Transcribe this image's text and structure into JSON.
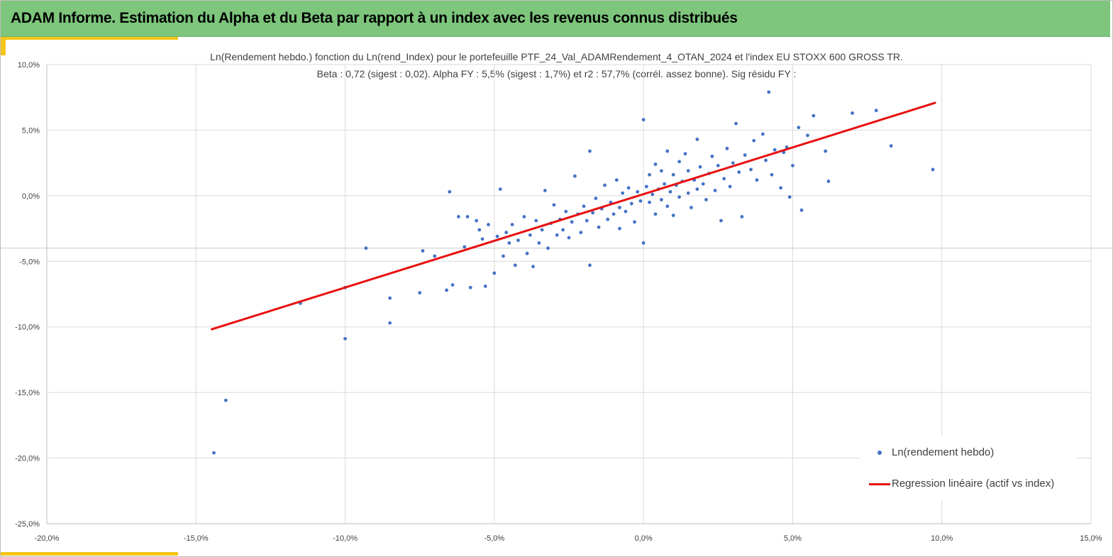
{
  "header": {
    "title": "ADAM Informe. Estimation du Alpha et du Beta par rapport à un index avec les revenus connus distribués",
    "background_color": "#7dc67c",
    "accent_color": "#f5c518"
  },
  "chart_data": {
    "type": "scatter",
    "title": "Ln(Rendement hebdo.) fonction du Ln(rend_Index) pour le portefeuille PTF_24_Val_ADAMRendement_4_OTAN_2024 et l'index EU STOXX 600 GROSS TR.",
    "subtitle": "Beta : 0,72 (sigest : 0,02). Alpha FY : 5,5% (sigest : 1,7%) et r2 : 57,7% (corrél. assez bonne). Sig résidu FY :",
    "xlabel": "",
    "ylabel": "",
    "xlim": [
      -20,
      15
    ],
    "ylim": [
      -25,
      10
    ],
    "x_ticks": [
      -20,
      -15,
      -10,
      -5,
      0,
      5,
      10,
      15
    ],
    "y_ticks": [
      10,
      5,
      0,
      -5,
      -10,
      -15,
      -20,
      -25
    ],
    "x_tick_labels": [
      "-20,0%",
      "-15,0%",
      "-10,0%",
      "-5,0%",
      "0,0%",
      "5,0%",
      "10,0%",
      "15,0%"
    ],
    "y_tick_labels": [
      "10,0%",
      "5,0%",
      "0,0%",
      "-5,0%",
      "-10,0%",
      "-15,0%",
      "-20,0%",
      "-25,0%"
    ],
    "grid": true,
    "reference_line_y": -4,
    "legend_position": "bottom-right",
    "series": [
      {
        "name": "Ln(rendement hebdo)",
        "kind": "points",
        "color": "#4472c4",
        "sampled": true,
        "points": [
          [
            -14.4,
            -19.6
          ],
          [
            -14.0,
            -15.6
          ],
          [
            -11.5,
            -8.2
          ],
          [
            -10.0,
            -10.9
          ],
          [
            -10.0,
            -7.0
          ],
          [
            -9.3,
            -4.0
          ],
          [
            -8.5,
            -9.7
          ],
          [
            -8.5,
            -7.8
          ],
          [
            -7.5,
            -7.4
          ],
          [
            -7.4,
            -4.2
          ],
          [
            -7.0,
            -4.6
          ],
          [
            -6.6,
            -7.2
          ],
          [
            -6.5,
            0.3
          ],
          [
            -6.4,
            -6.8
          ],
          [
            -6.2,
            -1.6
          ],
          [
            -6.0,
            -3.9
          ],
          [
            -5.9,
            -1.6
          ],
          [
            -5.8,
            -7.0
          ],
          [
            -5.6,
            -1.9
          ],
          [
            -5.5,
            -2.6
          ],
          [
            -5.4,
            -3.3
          ],
          [
            -5.3,
            -6.9
          ],
          [
            -5.2,
            -2.2
          ],
          [
            -5.0,
            -5.9
          ],
          [
            -4.9,
            -3.1
          ],
          [
            -4.8,
            0.5
          ],
          [
            -4.7,
            -4.6
          ],
          [
            -4.6,
            -2.8
          ],
          [
            -4.5,
            -3.6
          ],
          [
            -4.4,
            -2.2
          ],
          [
            -4.3,
            -5.3
          ],
          [
            -4.2,
            -3.4
          ],
          [
            -4.0,
            -1.6
          ],
          [
            -3.9,
            -4.4
          ],
          [
            -3.8,
            -3.0
          ],
          [
            -3.7,
            -5.4
          ],
          [
            -3.6,
            -1.9
          ],
          [
            -3.5,
            -3.6
          ],
          [
            -3.4,
            -2.6
          ],
          [
            -3.3,
            0.4
          ],
          [
            -3.2,
            -4.0
          ],
          [
            -3.1,
            -2.1
          ],
          [
            -3.0,
            -0.7
          ],
          [
            -2.9,
            -3.0
          ],
          [
            -2.8,
            -1.8
          ],
          [
            -2.7,
            -2.6
          ],
          [
            -2.6,
            -1.2
          ],
          [
            -2.5,
            -3.2
          ],
          [
            -2.4,
            -2.0
          ],
          [
            -2.3,
            1.5
          ],
          [
            -2.2,
            -1.4
          ],
          [
            -2.1,
            -2.8
          ],
          [
            -2.0,
            -0.8
          ],
          [
            -1.9,
            -1.9
          ],
          [
            -1.8,
            3.4
          ],
          [
            -1.8,
            -5.3
          ],
          [
            -1.7,
            -1.3
          ],
          [
            -1.6,
            -0.2
          ],
          [
            -1.5,
            -2.4
          ],
          [
            -1.4,
            -1.0
          ],
          [
            -1.3,
            0.8
          ],
          [
            -1.2,
            -1.8
          ],
          [
            -1.1,
            -0.5
          ],
          [
            -1.0,
            -1.4
          ],
          [
            -0.9,
            1.2
          ],
          [
            -0.8,
            -0.9
          ],
          [
            -0.8,
            -2.5
          ],
          [
            -0.7,
            0.2
          ],
          [
            -0.6,
            -1.2
          ],
          [
            -0.5,
            0.6
          ],
          [
            -0.4,
            -0.6
          ],
          [
            -0.3,
            -2.0
          ],
          [
            -0.2,
            0.3
          ],
          [
            -0.1,
            -0.4
          ],
          [
            0.0,
            5.8
          ],
          [
            0.0,
            -3.6
          ],
          [
            0.1,
            0.7
          ],
          [
            0.2,
            -0.5
          ],
          [
            0.2,
            1.6
          ],
          [
            0.3,
            0.1
          ],
          [
            0.4,
            -1.4
          ],
          [
            0.4,
            2.4
          ],
          [
            0.5,
            0.5
          ],
          [
            0.6,
            -0.3
          ],
          [
            0.6,
            1.9
          ],
          [
            0.7,
            0.9
          ],
          [
            0.8,
            -0.8
          ],
          [
            0.8,
            3.4
          ],
          [
            0.9,
            0.3
          ],
          [
            1.0,
            1.6
          ],
          [
            1.0,
            -1.5
          ],
          [
            1.1,
            0.8
          ],
          [
            1.2,
            2.6
          ],
          [
            1.2,
            -0.1
          ],
          [
            1.3,
            1.1
          ],
          [
            1.4,
            3.2
          ],
          [
            1.5,
            0.2
          ],
          [
            1.5,
            1.9
          ],
          [
            1.6,
            -0.9
          ],
          [
            1.7,
            1.2
          ],
          [
            1.8,
            4.3
          ],
          [
            1.8,
            0.5
          ],
          [
            1.9,
            2.2
          ],
          [
            2.0,
            0.9
          ],
          [
            2.1,
            -0.3
          ],
          [
            2.2,
            1.7
          ],
          [
            2.3,
            3.0
          ],
          [
            2.4,
            0.4
          ],
          [
            2.5,
            2.3
          ],
          [
            2.6,
            -1.9
          ],
          [
            2.7,
            1.3
          ],
          [
            2.8,
            3.6
          ],
          [
            2.9,
            0.7
          ],
          [
            3.0,
            2.5
          ],
          [
            3.1,
            5.5
          ],
          [
            3.2,
            1.8
          ],
          [
            3.3,
            -1.6
          ],
          [
            3.4,
            3.1
          ],
          [
            3.6,
            2.0
          ],
          [
            3.7,
            4.2
          ],
          [
            3.8,
            1.2
          ],
          [
            4.0,
            4.7
          ],
          [
            4.1,
            2.7
          ],
          [
            4.2,
            7.9
          ],
          [
            4.3,
            1.6
          ],
          [
            4.4,
            3.5
          ],
          [
            4.6,
            0.6
          ],
          [
            4.7,
            3.3
          ],
          [
            4.8,
            3.7
          ],
          [
            4.9,
            -0.1
          ],
          [
            5.0,
            2.3
          ],
          [
            5.2,
            5.2
          ],
          [
            5.3,
            -1.1
          ],
          [
            5.5,
            4.6
          ],
          [
            5.7,
            6.1
          ],
          [
            6.1,
            3.4
          ],
          [
            6.2,
            1.1
          ],
          [
            7.0,
            6.3
          ],
          [
            7.8,
            6.5
          ],
          [
            8.3,
            3.8
          ],
          [
            9.7,
            2.0
          ]
        ]
      },
      {
        "name": "Regression linéaire (actif vs index)",
        "kind": "line",
        "color": "#e81010",
        "x": [
          -14.5,
          9.8
        ],
        "y": [
          -10.2,
          7.1
        ]
      }
    ]
  },
  "legend": {
    "items": [
      {
        "label": "Ln(rendement hebdo)",
        "color": "#4472c4"
      },
      {
        "label": "Regression linéaire (actif vs index)",
        "color": "#e81010"
      }
    ]
  }
}
